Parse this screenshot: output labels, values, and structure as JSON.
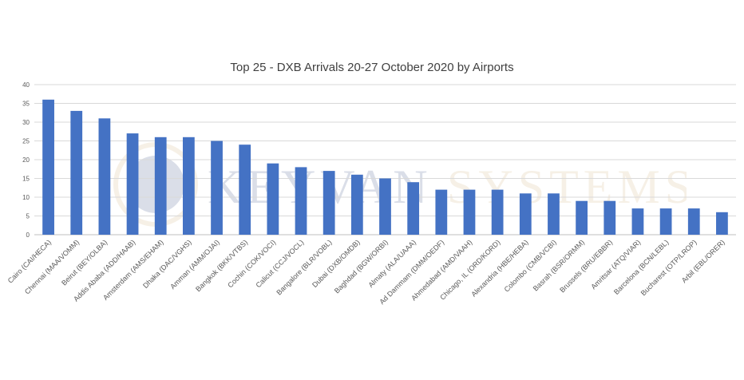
{
  "watermark": {
    "brand": "KEYVAN",
    "brand_suffix": "SYSTEMS",
    "brand_color": "#1f3a78",
    "suffix_color": "#c9a96a"
  },
  "colors": {
    "bar": "#4472C4",
    "grid": "#d9d9d9",
    "axis_text": "#595959",
    "title": "#404040"
  },
  "chart_data": {
    "type": "bar",
    "title": "Top 25 - DXB Arrivals 20-27 October 2020 by Airports",
    "xlabel": "",
    "ylabel": "",
    "ylim": [
      0,
      40
    ],
    "yticks": [
      0,
      5,
      10,
      15,
      20,
      25,
      30,
      35,
      40
    ],
    "grid": true,
    "legend": "none",
    "categories": [
      "Cairo (CAI/HECA)",
      "Chennai (MAA/VOMM)",
      "Beirut (BEY/OLBA)",
      "Addis Ababa (ADD/HAAB)",
      "Amsterdam (AMS/EHAM)",
      "Dhaka (DAC/VGHS)",
      "Amman (AMM/OJAI)",
      "Bangkok (BKK/VTBS)",
      "Cochin (COK/VOCI)",
      "Calicut (CCJ/VOCL)",
      "Bangalore (BLR/VOBL)",
      "Dubai (DXB/OMDB)",
      "Baghdad (BGW/ORBI)",
      "Almaty (ALA/UAAA)",
      "Ad Dammam (DMM/OEDF)",
      "Ahmedabad (AMD/VAAH)",
      "Chicago, IL (ORD/KORD)",
      "Alexandria (HBE/HEBA)",
      "Colombo (CMB/VCBI)",
      "Basrah (BSR/ORMM)",
      "Brussels (BRU/EBBR)",
      "Amritsar (ATQ/VIAR)",
      "Barcelona (BCN/LEBL)",
      "Bucharest (OTP/LROP)",
      "Arbil (EBL/ORER)"
    ],
    "values": [
      36,
      33,
      31,
      27,
      26,
      26,
      25,
      24,
      19,
      18,
      17,
      16,
      15,
      14,
      12,
      12,
      12,
      11,
      11,
      9,
      9,
      7,
      7,
      7,
      6
    ]
  }
}
